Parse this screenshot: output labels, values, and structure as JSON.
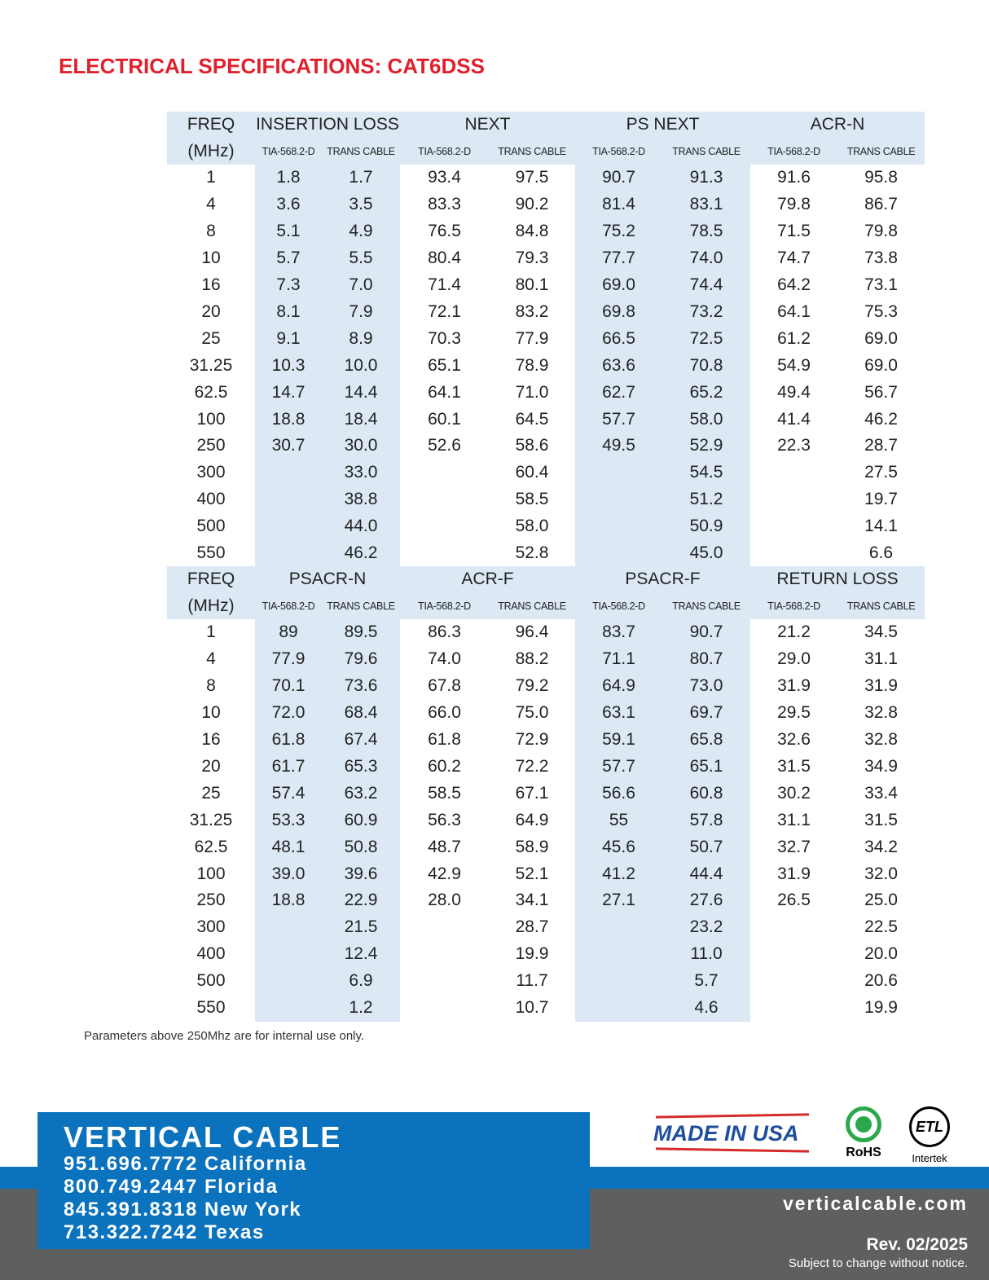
{
  "title": "ELECTRICAL SPECIFICATIONS: CAT6DSS",
  "tables": [
    {
      "groups": [
        "FREQ",
        "INSERTION LOSS",
        "NEXT",
        "PS NEXT",
        "ACR-N"
      ],
      "subheaders": [
        "(MHz)",
        "TIA-568.2-D",
        "TRANS CABLE",
        "TIA-568.2-D",
        "TRANS CABLE",
        "TIA-568.2-D",
        "TRANS CABLE",
        "TIA-568.2-D",
        "TRANS CABLE"
      ],
      "rows": [
        [
          "1",
          "1.8",
          "1.7",
          "93.4",
          "97.5",
          "90.7",
          "91.3",
          "91.6",
          "95.8"
        ],
        [
          "4",
          "3.6",
          "3.5",
          "83.3",
          "90.2",
          "81.4",
          "83.1",
          "79.8",
          "86.7"
        ],
        [
          "8",
          "5.1",
          "4.9",
          "76.5",
          "84.8",
          "75.2",
          "78.5",
          "71.5",
          "79.8"
        ],
        [
          "10",
          "5.7",
          "5.5",
          "80.4",
          "79.3",
          "77.7",
          "74.0",
          "74.7",
          "73.8"
        ],
        [
          "16",
          "7.3",
          "7.0",
          "71.4",
          "80.1",
          "69.0",
          "74.4",
          "64.2",
          "73.1"
        ],
        [
          "20",
          "8.1",
          "7.9",
          "72.1",
          "83.2",
          "69.8",
          "73.2",
          "64.1",
          "75.3"
        ],
        [
          "25",
          "9.1",
          "8.9",
          "70.3",
          "77.9",
          "66.5",
          "72.5",
          "61.2",
          "69.0"
        ],
        [
          "31.25",
          "10.3",
          "10.0",
          "65.1",
          "78.9",
          "63.6",
          "70.8",
          "54.9",
          "69.0"
        ],
        [
          "62.5",
          "14.7",
          "14.4",
          "64.1",
          "71.0",
          "62.7",
          "65.2",
          "49.4",
          "56.7"
        ],
        [
          "100",
          "18.8",
          "18.4",
          "60.1",
          "64.5",
          "57.7",
          "58.0",
          "41.4",
          "46.2"
        ],
        [
          "250",
          "30.7",
          "30.0",
          "52.6",
          "58.6",
          "49.5",
          "52.9",
          "22.3",
          "28.7"
        ],
        [
          "300",
          null,
          "33.0",
          null,
          "60.4",
          null,
          "54.5",
          null,
          "27.5"
        ],
        [
          "400",
          null,
          "38.8",
          null,
          "58.5",
          null,
          "51.2",
          null,
          "19.7"
        ],
        [
          "500",
          null,
          "44.0",
          null,
          "58.0",
          null,
          "50.9",
          null,
          "14.1"
        ],
        [
          "550",
          null,
          "46.2",
          null,
          "52.8",
          null,
          "45.0",
          null,
          "6.6"
        ]
      ]
    },
    {
      "groups": [
        "FREQ",
        "PSACR-N",
        "ACR-F",
        "PSACR-F",
        "RETURN LOSS"
      ],
      "subheaders": [
        "(MHz)",
        "TIA-568.2-D",
        "TRANS CABLE",
        "TIA-568.2-D",
        "TRANS CABLE",
        "TIA-568.2-D",
        "TRANS CABLE",
        "TIA-568.2-D",
        "TRANS CABLE"
      ],
      "rows": [
        [
          "1",
          "89",
          "89.5",
          "86.3",
          "96.4",
          "83.7",
          "90.7",
          "21.2",
          "34.5"
        ],
        [
          "4",
          "77.9",
          "79.6",
          "74.0",
          "88.2",
          "71.1",
          "80.7",
          "29.0",
          "31.1"
        ],
        [
          "8",
          "70.1",
          "73.6",
          "67.8",
          "79.2",
          "64.9",
          "73.0",
          "31.9",
          "31.9"
        ],
        [
          "10",
          "72.0",
          "68.4",
          "66.0",
          "75.0",
          "63.1",
          "69.7",
          "29.5",
          "32.8"
        ],
        [
          "16",
          "61.8",
          "67.4",
          "61.8",
          "72.9",
          "59.1",
          "65.8",
          "32.6",
          "32.8"
        ],
        [
          "20",
          "61.7",
          "65.3",
          "60.2",
          "72.2",
          "57.7",
          "65.1",
          "31.5",
          "34.9"
        ],
        [
          "25",
          "57.4",
          "63.2",
          "58.5",
          "67.1",
          "56.6",
          "60.8",
          "30.2",
          "33.4"
        ],
        [
          "31.25",
          "53.3",
          "60.9",
          "56.3",
          "64.9",
          "55",
          "57.8",
          "31.1",
          "31.5"
        ],
        [
          "62.5",
          "48.1",
          "50.8",
          "48.7",
          "58.9",
          "45.6",
          "50.7",
          "32.7",
          "34.2"
        ],
        [
          "100",
          "39.0",
          "39.6",
          "42.9",
          "52.1",
          "41.2",
          "44.4",
          "31.9",
          "32.0"
        ],
        [
          "250",
          "18.8",
          "22.9",
          "28.0",
          "34.1",
          "27.1",
          "27.6",
          "26.5",
          "25.0"
        ],
        [
          "300",
          null,
          "21.5",
          null,
          "28.7",
          null,
          "23.2",
          null,
          "22.5"
        ],
        [
          "400",
          null,
          "12.4",
          null,
          "19.9",
          null,
          "11.0",
          null,
          "20.0"
        ],
        [
          "500",
          null,
          "6.9",
          null,
          "11.7",
          null,
          "5.7",
          null,
          "20.6"
        ],
        [
          "550",
          null,
          "1.2",
          null,
          "10.7",
          null,
          "4.6",
          null,
          "19.9"
        ]
      ]
    }
  ],
  "note": "Parameters above 250Mhz are for internal use only.",
  "footer": {
    "company": "VERTICAL CABLE",
    "phones": [
      "951.696.7772 California",
      "800.749.2447 Florida",
      "845.391.8318 New York",
      "713.322.7242 Texas"
    ],
    "badges": [
      "MADE IN USA",
      "RoHS",
      "Intertek"
    ],
    "website": "verticalcable.com",
    "revision": "Rev. 02/2025",
    "notice": "Subject to change without notice."
  }
}
